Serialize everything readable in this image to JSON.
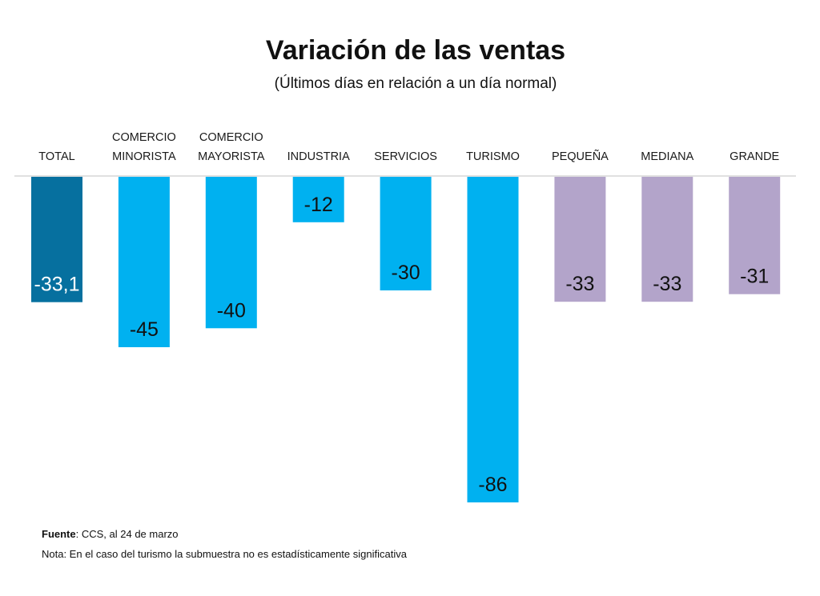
{
  "chart_data": {
    "type": "bar",
    "title": "Variación de las ventas",
    "subtitle": "(Últimos días en relación a un día normal)",
    "categories": [
      [
        "TOTAL"
      ],
      [
        "COMERCIO",
        "MINORISTA"
      ],
      [
        "COMERCIO",
        "MAYORISTA"
      ],
      [
        "INDUSTRIA"
      ],
      [
        "SERVICIOS"
      ],
      [
        "TURISMO"
      ],
      [
        "PEQUEÑA"
      ],
      [
        "MEDIANA"
      ],
      [
        "GRANDE"
      ]
    ],
    "values": [
      -33.1,
      -45,
      -40,
      -12,
      -30,
      -86,
      -33,
      -33,
      -31
    ],
    "value_labels": [
      "-33,1",
      "-45",
      "-40",
      "-12",
      "-30",
      "-86",
      "-33",
      "-33",
      "-31"
    ],
    "colors": [
      "#06709f",
      "#00b1f0",
      "#00b1f0",
      "#00b1f0",
      "#00b1f0",
      "#00b1f0",
      "#b3a4ca",
      "#b3a4ca",
      "#b3a4ca"
    ],
    "ylim": [
      -86,
      0
    ],
    "grid": false,
    "legend": "none"
  },
  "footer": {
    "source_label": "Fuente",
    "source_text": ": CCS, al 24 de marzo",
    "note": "Nota: En el caso del turismo la submuestra no es estadísticamente significativa"
  }
}
